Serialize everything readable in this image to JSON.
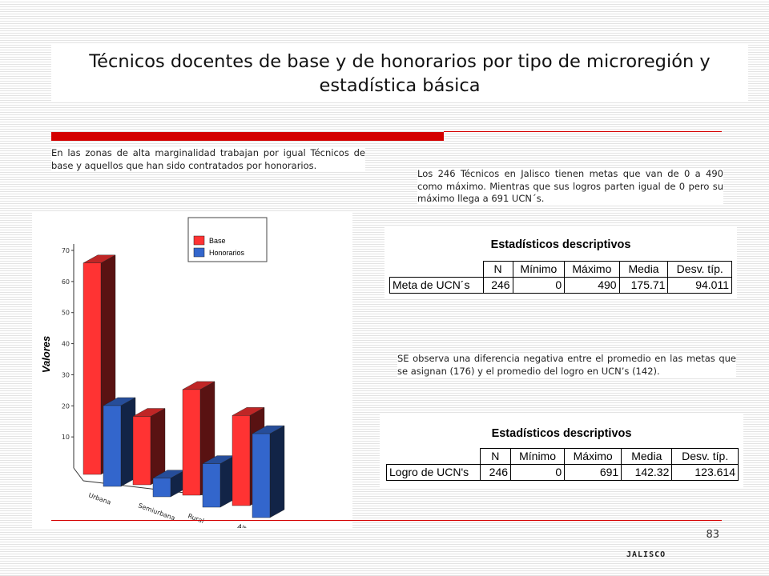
{
  "title": "Técnicos docentes de base y de honorarios por tipo de microregión y estadística básica",
  "paragraphs": {
    "left": "En las zonas de alta marginalidad trabajan por igual Técnicos de base y aquellos que han sido contratados por honorarios.",
    "right_top": "Los 246 Técnicos en Jalisco tienen metas que van de 0 a 490 como máximo. Mientras que sus logros parten igual de 0 pero su máximo llega a 691 UCN´s.",
    "right_middle": "SE observa una diferencia negativa entre el promedio en las metas que se asignan (176) y el promedio del logro en UCN’s (142)."
  },
  "stats_tables": [
    {
      "title": "Estadísticos descriptivos",
      "headers": [
        "N",
        "Mínimo",
        "Máximo",
        "Media",
        "Desv. típ."
      ],
      "row_label": "Meta de UCN´s",
      "values": [
        "246",
        "0",
        "490",
        "175.71",
        "94.011"
      ]
    },
    {
      "title": "Estadísticos descriptivos",
      "headers": [
        "N",
        "Mínimo",
        "Máximo",
        "Media",
        "Desv. típ."
      ],
      "row_label": "Logro de UCN's",
      "values": [
        "246",
        "0",
        "691",
        "142.32",
        "123.614"
      ]
    }
  ],
  "chart_data": {
    "type": "bar",
    "ylabel": "Valores",
    "xlabel": "",
    "categories": [
      "Urbana",
      "Semiurbana",
      "Rural",
      "Alta marginalidad"
    ],
    "series": [
      {
        "name": "Base",
        "values": [
          68,
          22,
          34,
          29
        ],
        "color": "#ff3333"
      },
      {
        "name": "Honorarios",
        "values": [
          26,
          6,
          14,
          27
        ],
        "color": "#3366cc"
      }
    ],
    "yticks": [
      "10",
      "20",
      "30",
      "40",
      "50",
      "60",
      "70"
    ],
    "ylim": [
      0,
      70
    ],
    "legend_position": "top-right",
    "grid": false
  },
  "page_number": "83",
  "footer": "JALISCO"
}
